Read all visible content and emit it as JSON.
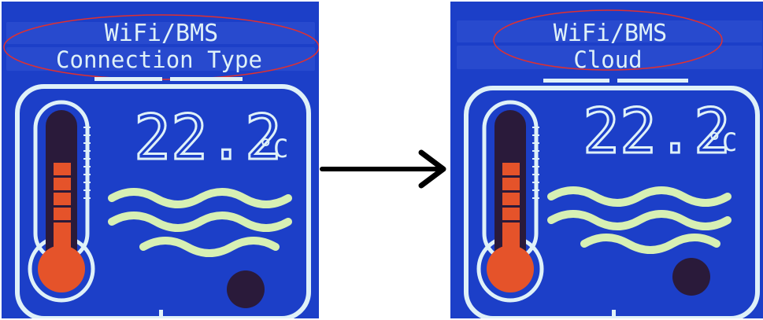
{
  "colors": {
    "lcd_blue": "#1c3fc8",
    "segment": "#dff1f8",
    "segment_dim": "#2b4dd0",
    "mercury": "#e5532a",
    "thermometer_dark": "#2a1a3a",
    "waves": "#d7f0b4",
    "ellipse": "#e03030"
  },
  "panels": [
    {
      "line1": "WiFi/BMS",
      "line2": "Connection Type",
      "temperature": "22.2",
      "unit": "°C"
    },
    {
      "line1": "WiFi/BMS",
      "line2": "Cloud",
      "temperature": "22.2",
      "unit": "°C"
    }
  ],
  "arrow_icon": "right-arrow-icon"
}
